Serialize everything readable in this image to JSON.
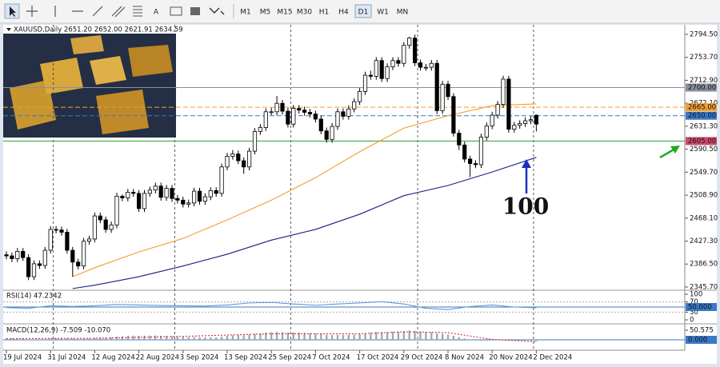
{
  "toolbar": {
    "tools": [
      "A"
    ],
    "periods": [
      "M1",
      "M5",
      "M15",
      "M30",
      "H1",
      "H4",
      "D1",
      "W1",
      "MN"
    ],
    "active_period": 6
  },
  "chart_data": [
    {
      "type": "candlestick",
      "title": "XAUUSD,Daily  2651.20 2652.00 2621.91 2634.59",
      "categories": [
        "19 Jul 2024",
        null,
        null,
        null,
        null,
        null,
        null,
        null,
        "31 Jul 2024",
        null,
        null,
        null,
        null,
        null,
        null,
        null,
        "12 Aug 2024",
        null,
        null,
        null,
        null,
        null,
        null,
        null,
        "22 Aug 2024",
        null,
        null,
        null,
        null,
        null,
        null,
        null,
        "3 Sep 2024",
        null,
        null,
        null,
        null,
        null,
        null,
        null,
        "13 Sep 2024",
        null,
        null,
        null,
        null,
        null,
        null,
        null,
        "25 Sep 2024",
        null,
        null,
        null,
        null,
        null,
        null,
        null,
        "7 Oct 2024",
        null,
        null,
        null,
        null,
        null,
        null,
        null,
        "17 Oct 2024",
        null,
        null,
        null,
        null,
        null,
        null,
        null,
        "29 Oct 2024",
        null,
        null,
        null,
        null,
        null,
        null,
        null,
        "8 Nov 2024",
        null,
        null,
        null,
        null,
        null,
        null,
        null,
        "20 Nov 2024",
        null,
        null,
        null,
        null,
        null,
        null,
        null,
        "2 Dec 2024"
      ],
      "open": [
        2403,
        2401,
        2396,
        2409,
        2398,
        2364,
        2387,
        2384,
        2411,
        2448,
        2447,
        2443,
        2411,
        2390,
        2383,
        2427,
        2431,
        2472,
        2465,
        2448,
        2456,
        2507,
        2504,
        2514,
        2512,
        2485,
        2512,
        2518,
        2525,
        2505,
        2521,
        2503,
        2500,
        2493,
        2495,
        2516,
        2498,
        2506,
        2517,
        2512,
        2559,
        2578,
        2582,
        2570,
        2559,
        2587,
        2622,
        2629,
        2657,
        2657,
        2672,
        2658,
        2635,
        2663,
        2660,
        2656,
        2653,
        2644,
        2623,
        2608,
        2631,
        2657,
        2649,
        2662,
        2675,
        2693,
        2722,
        2720,
        2748,
        2716,
        2737,
        2748,
        2743,
        2775,
        2788,
        2744,
        2736,
        2736,
        2743,
        2659,
        2706,
        2684,
        2619,
        2598,
        2573,
        2565,
        2563,
        2612,
        2632,
        2651,
        2670,
        2715,
        2626,
        2633,
        2636,
        2641,
        2651
      ],
      "high": [
        2409,
        2407,
        2415,
        2415,
        2404,
        2393,
        2393,
        2417,
        2454,
        2454,
        2453,
        2449,
        2417,
        2396,
        2433,
        2437,
        2478,
        2478,
        2471,
        2462,
        2513,
        2510,
        2520,
        2520,
        2518,
        2518,
        2524,
        2531,
        2531,
        2527,
        2527,
        2509,
        2506,
        2501,
        2522,
        2522,
        2512,
        2523,
        2523,
        2565,
        2584,
        2589,
        2588,
        2576,
        2593,
        2628,
        2635,
        2663,
        2664,
        2685,
        2678,
        2664,
        2669,
        2669,
        2666,
        2662,
        2659,
        2650,
        2629,
        2637,
        2663,
        2663,
        2668,
        2681,
        2699,
        2728,
        2730,
        2754,
        2754,
        2743,
        2754,
        2754,
        2781,
        2790,
        2794,
        2750,
        2742,
        2749,
        2749,
        2712,
        2712,
        2690,
        2625,
        2604,
        2579,
        2571,
        2618,
        2638,
        2657,
        2676,
        2721,
        2721,
        2639,
        2642,
        2647,
        2649,
        2652
      ],
      "low": [
        2395,
        2390,
        2390,
        2392,
        2358,
        2358,
        2378,
        2378,
        2405,
        2441,
        2437,
        2405,
        2364,
        2377,
        2377,
        2421,
        2425,
        2459,
        2442,
        2442,
        2450,
        2498,
        2498,
        2506,
        2479,
        2479,
        2506,
        2512,
        2499,
        2499,
        2497,
        2494,
        2487,
        2487,
        2489,
        2492,
        2492,
        2500,
        2506,
        2506,
        2553,
        2572,
        2564,
        2547,
        2553,
        2581,
        2616,
        2623,
        2651,
        2651,
        2652,
        2629,
        2629,
        2654,
        2650,
        2647,
        2638,
        2617,
        2602,
        2602,
        2625,
        2643,
        2643,
        2656,
        2669,
        2687,
        2714,
        2714,
        2710,
        2710,
        2731,
        2737,
        2737,
        2769,
        2738,
        2730,
        2730,
        2730,
        2653,
        2653,
        2678,
        2613,
        2589,
        2567,
        2541,
        2557,
        2557,
        2606,
        2626,
        2645,
        2664,
        2620,
        2620,
        2627,
        2630,
        2635,
        2622
      ],
      "close": [
        2401,
        2396,
        2409,
        2398,
        2364,
        2387,
        2384,
        2411,
        2448,
        2447,
        2443,
        2411,
        2390,
        2383,
        2427,
        2431,
        2472,
        2465,
        2448,
        2456,
        2507,
        2504,
        2514,
        2512,
        2485,
        2512,
        2518,
        2525,
        2505,
        2521,
        2503,
        2500,
        2493,
        2495,
        2516,
        2498,
        2506,
        2517,
        2512,
        2559,
        2578,
        2582,
        2570,
        2559,
        2587,
        2622,
        2629,
        2657,
        2657,
        2672,
        2658,
        2635,
        2663,
        2660,
        2656,
        2653,
        2644,
        2623,
        2608,
        2631,
        2657,
        2649,
        2662,
        2675,
        2693,
        2722,
        2720,
        2748,
        2716,
        2737,
        2748,
        2743,
        2775,
        2788,
        2744,
        2736,
        2736,
        2743,
        2659,
        2706,
        2684,
        2619,
        2598,
        2573,
        2565,
        2563,
        2612,
        2632,
        2651,
        2670,
        2715,
        2626,
        2633,
        2636,
        2641,
        2643,
        2635
      ],
      "up_color": "#ffffff",
      "down_color": "#000000",
      "lines": [
        {
          "color": "#f0a030",
          "x": [
            12,
            16,
            24,
            32,
            40,
            48,
            56,
            64,
            72,
            80,
            88,
            96
          ],
          "values": [
            2364,
            2380,
            2408,
            2432,
            2465,
            2500,
            2540,
            2586,
            2628,
            2650,
            2668,
            2671
          ]
        },
        {
          "color": "#1c1c80",
          "x": [
            12,
            16,
            24,
            32,
            40,
            48,
            56,
            64,
            72,
            80,
            88,
            96
          ],
          "values": [
            2343,
            2349,
            2364,
            2383,
            2404,
            2429,
            2448,
            2475,
            2508,
            2526,
            2550,
            2576
          ]
        }
      ],
      "levels": [
        {
          "value": 2700,
          "label": "2700.00",
          "color": "#8a8fa0",
          "label_color": "#8a8fa0",
          "dashed": false
        },
        {
          "value": 2665,
          "label": "2665.00",
          "color": "#f0a030",
          "label_color": "#f0a030",
          "dashed": true
        },
        {
          "value": 2650,
          "label": "2650.00",
          "color": "#3a78c8",
          "label_color": "#3a78c8",
          "dashed": true
        },
        {
          "value": 2605,
          "label": "2605.00",
          "color": "#2aa02a",
          "label_color": "#d04a6a",
          "dashed": false
        }
      ],
      "separators": [
        9,
        31,
        52,
        75,
        96
      ],
      "annotation": "100",
      "annotation_color": "#1a2fc0",
      "ylim": [
        2341.4,
        2810.1
      ],
      "yticks": [
        {
          "value": 2794.5,
          "label": "2794.50"
        },
        {
          "value": 2753.7,
          "label": "2753.70"
        },
        {
          "value": 2712.9,
          "label": "2712.90"
        },
        {
          "value": 2672.1,
          "label": "2672.10"
        },
        {
          "value": 2631.3,
          "label": "2631.30"
        },
        {
          "value": 2590.5,
          "label": "2590.50"
        },
        {
          "value": 2549.7,
          "label": "2549.70"
        },
        {
          "value": 2508.9,
          "label": "2508.90"
        },
        {
          "value": 2468.1,
          "label": "2468.10"
        },
        {
          "value": 2427.3,
          "label": "2427.30"
        },
        {
          "value": 2386.5,
          "label": "2386.50"
        },
        {
          "value": 2345.7,
          "label": "2345.70"
        }
      ],
      "grid": false
    },
    {
      "type": "line",
      "title": "RSI(14) 47.2342",
      "color": "#5b9bd5",
      "x": [
        0,
        4,
        8,
        12,
        16,
        20,
        24,
        28,
        32,
        36,
        40,
        44,
        48,
        52,
        56,
        60,
        64,
        68,
        72,
        76,
        80,
        84,
        88,
        92,
        96
      ],
      "values": [
        48,
        45,
        55,
        52,
        55,
        60,
        58,
        56,
        55,
        54,
        58,
        66,
        68,
        62,
        57,
        62,
        66,
        71,
        62,
        45,
        40,
        52,
        58,
        50,
        47
      ],
      "levels": [
        {
          "value": 50,
          "label": "50.000",
          "color": "#3a78c8"
        }
      ],
      "ylim": [
        0,
        100
      ],
      "yticks": [
        100,
        70,
        30,
        0
      ]
    },
    {
      "type": "bar",
      "title": "MACD(12,26,9) -7.509 -10.070",
      "color": "#a8a8a8",
      "values": [
        8,
        7,
        7,
        6,
        3,
        2,
        2,
        3,
        6,
        8,
        10,
        9,
        7,
        5,
        6,
        7,
        10,
        12,
        12,
        13,
        17,
        19,
        21,
        22,
        21,
        22,
        22,
        23,
        21,
        21,
        19,
        17,
        15,
        14,
        15,
        13,
        13,
        13,
        13,
        17,
        21,
        24,
        25,
        24,
        27,
        31,
        34,
        38,
        40,
        42,
        41,
        39,
        39,
        38,
        37,
        35,
        33,
        30,
        27,
        26,
        27,
        26,
        27,
        28,
        31,
        35,
        37,
        41,
        40,
        41,
        43,
        43,
        46,
        49,
        47,
        44,
        42,
        41,
        34,
        32,
        28,
        21,
        14,
        7,
        1,
        -4,
        -5,
        -5,
        -3,
        -1,
        3,
        0,
        -2,
        -4,
        -5,
        -6,
        -8
      ],
      "signal": {
        "color": "#d03030",
        "x": [
          0,
          16,
          32,
          48,
          64,
          72,
          80,
          88,
          96
        ],
        "values": [
          6,
          8,
          18,
          32,
          32,
          42,
          38,
          2,
          -10
        ]
      },
      "levels": [
        {
          "value": 0,
          "label": "0.000",
          "color": "#3a78c8"
        }
      ],
      "ylim": [
        -50.6,
        67.4
      ],
      "yticks": [
        50.575
      ]
    }
  ]
}
